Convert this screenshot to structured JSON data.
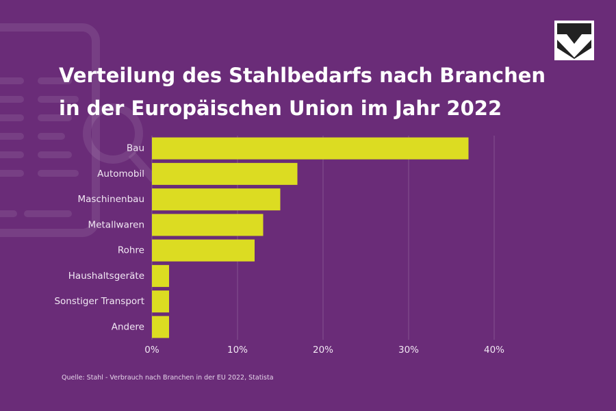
{
  "chart_data": {
    "type": "bar",
    "orientation": "horizontal",
    "title": "Verteilung des Stahlbedarfs nach Branchen in der Europäischen Union im Jahr 2022",
    "source": "Quelle: Stahl - Verbrauch nach Branchen in der EU 2022, Statista",
    "categories": [
      "Bau",
      "Automobil",
      "Maschinenbau",
      "Metallwaren",
      "Rohre",
      "Haushaltsgeräte",
      "Sonstiger Transport",
      "Andere"
    ],
    "values": [
      37,
      17,
      15,
      13,
      12,
      2,
      2,
      2
    ],
    "color": "#dcdc22",
    "xlim": [
      0,
      40
    ],
    "xticks": [
      {
        "value": 0,
        "label": "0%"
      },
      {
        "value": 10,
        "label": "10%"
      },
      {
        "value": 20,
        "label": "20%"
      },
      {
        "value": 30,
        "label": "30%"
      },
      {
        "value": 40,
        "label": "40%"
      }
    ],
    "grid": true
  }
}
